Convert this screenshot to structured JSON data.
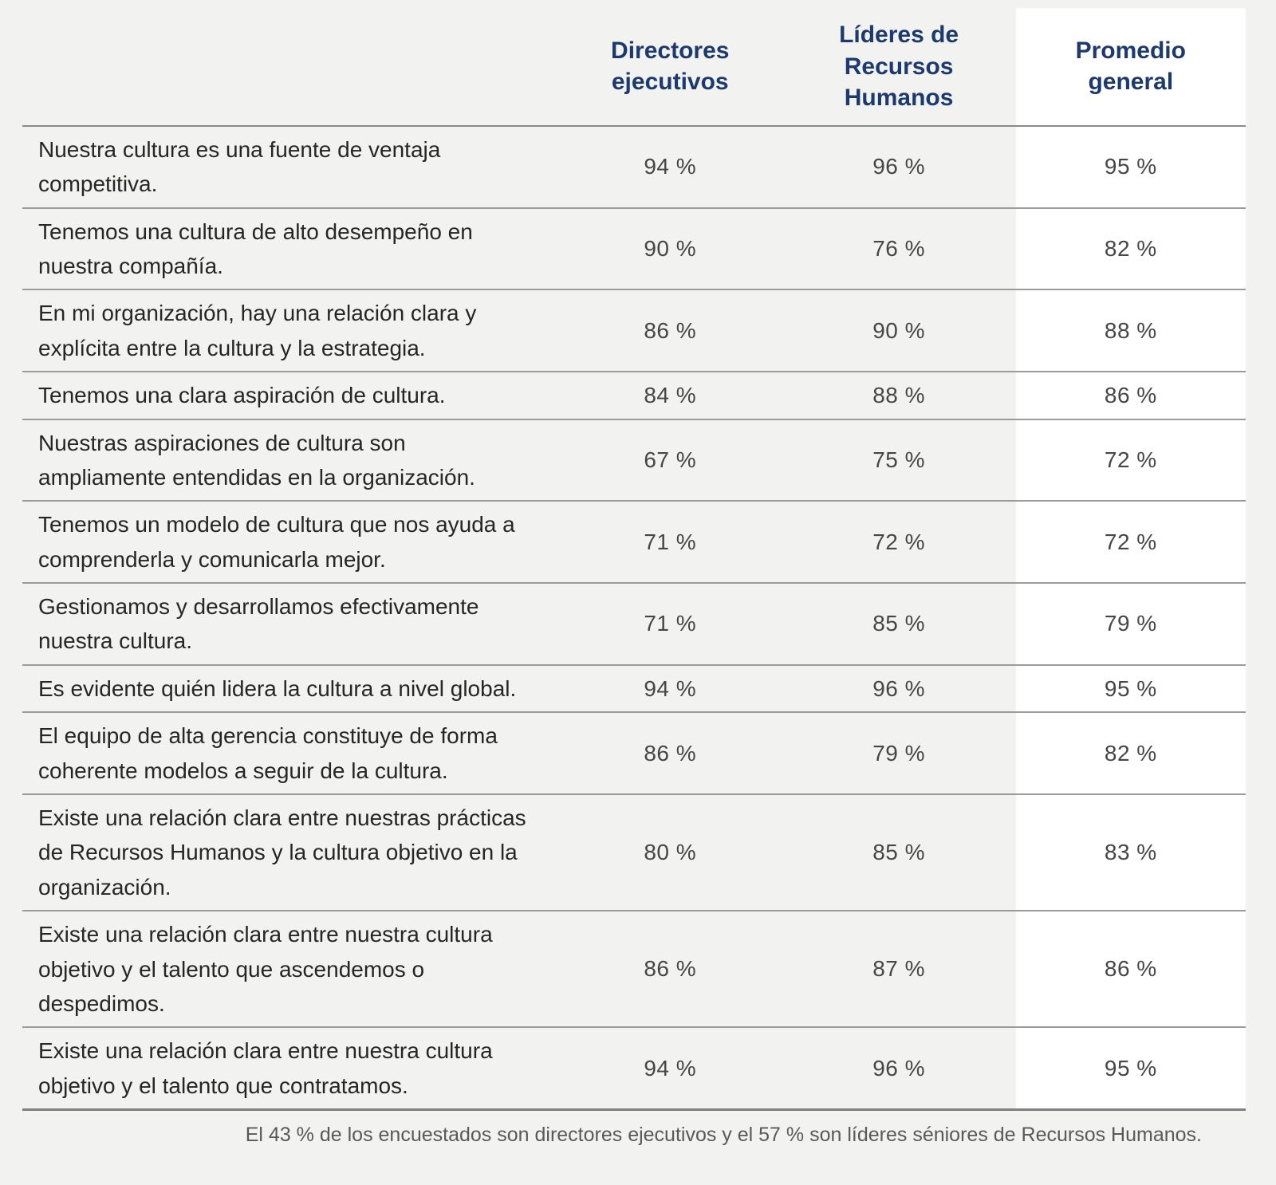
{
  "colors": {
    "page_background": "#f2f2f1",
    "header_text": "#1c3a6e",
    "statement_text": "#262626",
    "value_text": "#464646",
    "row_separator_line": "#9b9b9b",
    "strong_bottom_line": "#7f7f7f",
    "highlight_column_background": "#ffffff",
    "footnote_text": "#595959"
  },
  "table": {
    "headers": {
      "statement": "",
      "ceo": "Directores ejecutivos",
      "hr": "Líderes de Recursos Humanos",
      "avg": "Promedio general"
    },
    "rows": [
      {
        "statement": "Nuestra cultura es una fuente de ventaja competitiva.",
        "ceo": "94 %",
        "hr": "96 %",
        "avg": "95 %"
      },
      {
        "statement": "Tenemos una cultura de alto desempeño en nuestra compañía.",
        "ceo": "90 %",
        "hr": "76 %",
        "avg": "82 %"
      },
      {
        "statement": "En mi organización, hay una relación clara y explícita entre la cultura y la estrategia.",
        "ceo": "86 %",
        "hr": "90 %",
        "avg": "88 %"
      },
      {
        "statement": "Tenemos una clara aspiración de cultura.",
        "ceo": "84 %",
        "hr": "88 %",
        "avg": "86 %"
      },
      {
        "statement": "Nuestras aspiraciones de cultura son ampliamente entendidas en la organización.",
        "ceo": "67 %",
        "hr": "75 %",
        "avg": "72 %"
      },
      {
        "statement": "Tenemos un modelo de cultura que nos ayuda a comprenderla y comunicarla mejor.",
        "ceo": "71 %",
        "hr": "72 %",
        "avg": "72 %"
      },
      {
        "statement": "Gestionamos y desarrollamos efectivamente nuestra cultura.",
        "ceo": "71 %",
        "hr": "85 %",
        "avg": "79 %"
      },
      {
        "statement": "Es evidente quién lidera la cultura a nivel global.",
        "ceo": "94 %",
        "hr": "96 %",
        "avg": "95 %"
      },
      {
        "statement": "El equipo de alta gerencia constituye de forma coherente modelos a seguir de la cultura.",
        "ceo": "86 %",
        "hr": "79 %",
        "avg": "82 %"
      },
      {
        "statement": "Existe una relación clara entre nuestras prácticas de Recursos Humanos y la cultura objetivo en la organización.",
        "ceo": "80 %",
        "hr": "85 %",
        "avg": "83 %"
      },
      {
        "statement": "Existe una relación clara entre nuestra cultura objetivo y el talento que ascendemos o despedimos.",
        "ceo": "86 %",
        "hr": "87 %",
        "avg": "86 %"
      },
      {
        "statement": "Existe una relación clara entre nuestra cultura objetivo y el talento que contratamos.",
        "ceo": "94 %",
        "hr": "96 %",
        "avg": "95 %"
      }
    ],
    "footnote": "El 43 % de los encuestados son directores ejecutivos y el 57 % son líderes séniores de Recursos Humanos."
  },
  "chart_data": {
    "type": "table",
    "title": "",
    "columns": [
      "Directores ejecutivos",
      "Líderes de Recursos Humanos",
      "Promedio general"
    ],
    "unit": "%",
    "rows": [
      {
        "statement": "Nuestra cultura es una fuente de ventaja competitiva.",
        "values": [
          94,
          96,
          95
        ]
      },
      {
        "statement": "Tenemos una cultura de alto desempeño en nuestra compañía.",
        "values": [
          90,
          76,
          82
        ]
      },
      {
        "statement": "En mi organización, hay una relación clara y explícita entre la cultura y la estrategia.",
        "values": [
          86,
          90,
          88
        ]
      },
      {
        "statement": "Tenemos una clara aspiración de cultura.",
        "values": [
          84,
          88,
          86
        ]
      },
      {
        "statement": "Nuestras aspiraciones de cultura son ampliamente entendidas en la organización.",
        "values": [
          67,
          75,
          72
        ]
      },
      {
        "statement": "Tenemos un modelo de cultura que nos ayuda a comprenderla y comunicarla mejor.",
        "values": [
          71,
          72,
          72
        ]
      },
      {
        "statement": "Gestionamos y desarrollamos efectivamente nuestra cultura.",
        "values": [
          71,
          85,
          79
        ]
      },
      {
        "statement": "Es evidente quién lidera la cultura a nivel global.",
        "values": [
          94,
          96,
          95
        ]
      },
      {
        "statement": "El equipo de alta gerencia constituye de forma coherente modelos a seguir de la cultura.",
        "values": [
          86,
          79,
          82
        ]
      },
      {
        "statement": "Existe una relación clara entre nuestras prácticas de Recursos Humanos y la cultura objetivo en la organización.",
        "values": [
          80,
          85,
          83
        ]
      },
      {
        "statement": "Existe una relación clara entre nuestra cultura objetivo y el talento que ascendemos o despedimos.",
        "values": [
          86,
          87,
          86
        ]
      },
      {
        "statement": "Existe una relación clara entre nuestra cultura objetivo y el talento que contratamos.",
        "values": [
          94,
          96,
          95
        ]
      }
    ],
    "footnote": "El 43 % de los encuestados son directores ejecutivos y el 57 % son líderes séniores de Recursos Humanos.",
    "layout": {
      "highlighted_column": "Promedio general",
      "grid": "horizontal-lines-only"
    }
  }
}
